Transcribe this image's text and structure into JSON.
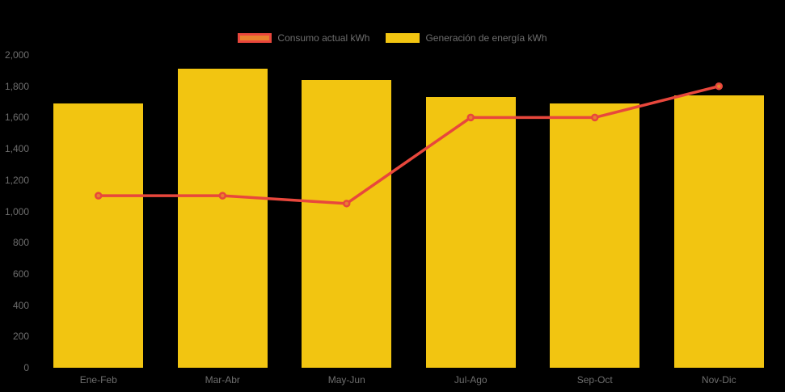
{
  "colors": {
    "background": "#000000",
    "bar": "#F2C511",
    "line": "#E8473C",
    "marker": "#E8802E",
    "label": "#6E6E6E"
  },
  "legend": {
    "position": "top",
    "items": [
      {
        "label": "Consumo actual kWh",
        "swatch": "orange-box-red-border"
      },
      {
        "label": "Generación de energía kWh",
        "swatch": "yellow-box"
      }
    ]
  },
  "chart_data": {
    "type": "bar",
    "subtype": "bar+line-combo",
    "categories": [
      "Ene-Feb",
      "Mar-Abr",
      "May-Jun",
      "Jul-Ago",
      "Sep-Oct",
      "Nov-Dic"
    ],
    "series": [
      {
        "name": "Consumo actual kWh",
        "type": "line",
        "color": "#E8473C",
        "marker_color": "#E8802E",
        "values": [
          1100,
          1100,
          1050,
          1600,
          1600,
          1800
        ]
      },
      {
        "name": "Generación de energía kWh",
        "type": "bar",
        "color": "#F2C511",
        "values": [
          1690,
          1910,
          1840,
          1730,
          1690,
          1740
        ]
      }
    ],
    "title": "",
    "xlabel": "",
    "ylabel": "",
    "ylim": [
      0,
      2000
    ],
    "ytick_step": 200,
    "ytick_labels": [
      "0",
      "200",
      "400",
      "600",
      "800",
      "1,000",
      "1,200",
      "1,400",
      "1,600",
      "1,800",
      "2,000"
    ],
    "grid": false,
    "legend_position": "top"
  }
}
